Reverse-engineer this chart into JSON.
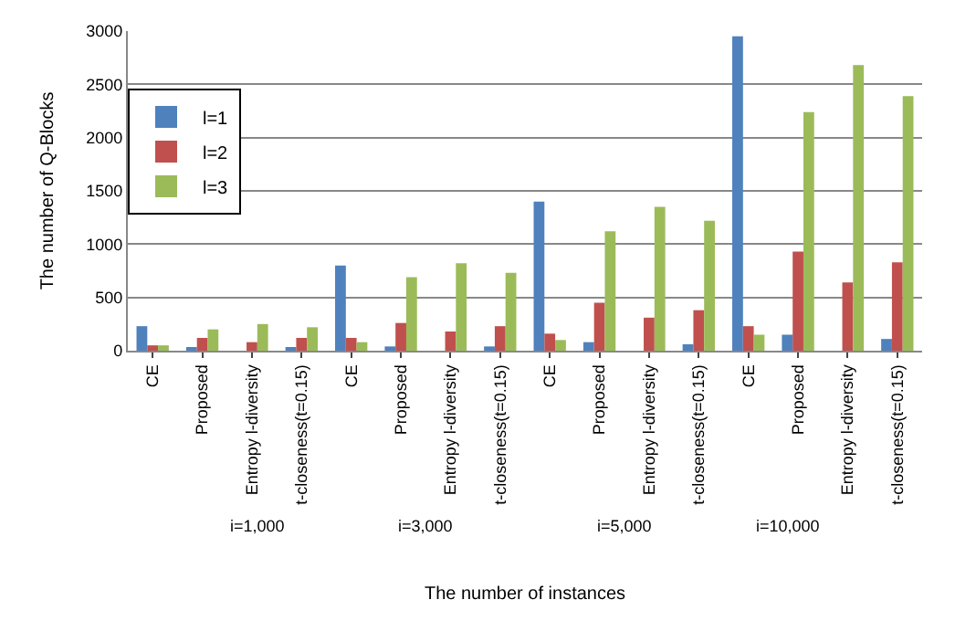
{
  "chart_data": {
    "type": "bar",
    "xlabel": "The number of instances",
    "ylabel": "The number of Q-Blocks",
    "categories": [
      "CE",
      "Proposed",
      "Entropy l-diversity",
      "t-closeness(t=0.15)",
      "CE",
      "Proposed",
      "Entropy l-diversity",
      "t-closeness(t=0.15)",
      "CE",
      "Proposed",
      "Entropy l-diversity",
      "t-closeness(t=0.15)",
      "CE",
      "Proposed",
      "Entropy l-diversity",
      "t-closeness(t=0.15)"
    ],
    "series": [
      {
        "name": "l=1",
        "color": "#4f81bd",
        "values": [
          230,
          20,
          null,
          20,
          800,
          40,
          null,
          40,
          1400,
          80,
          null,
          60,
          2950,
          150,
          null,
          110
        ]
      },
      {
        "name": "l=2",
        "color": "#c0504d",
        "values": [
          50,
          120,
          80,
          120,
          120,
          260,
          180,
          230,
          160,
          450,
          310,
          380,
          230,
          930,
          640,
          830
        ]
      },
      {
        "name": "l=3",
        "color": "#9bbb59",
        "values": [
          50,
          200,
          250,
          220,
          80,
          690,
          820,
          730,
          100,
          1120,
          1350,
          1220,
          150,
          2240,
          2680,
          2390
        ]
      }
    ],
    "annotations": [
      "i=1,000",
      "i=3,000",
      "i=5,000",
      "i=10,000"
    ],
    "ylim": [
      0,
      3000
    ],
    "yticks": [
      0,
      500,
      1000,
      1500,
      2000,
      2500,
      3000
    ],
    "grid": "y",
    "legend": "top left"
  }
}
